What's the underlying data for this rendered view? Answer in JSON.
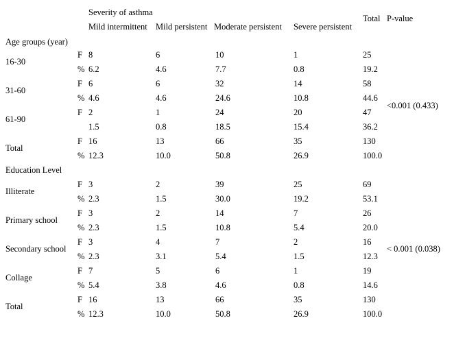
{
  "header": {
    "severity_title": "Severity of asthma",
    "col_mild_intermittent": "Mild intermittent",
    "col_mild_persistent": "Mild persistent",
    "col_moderate_persistent": "Moderate persistent",
    "col_severe_persistent": "Severe persistent",
    "col_total": "Total",
    "col_pvalue": "P-value"
  },
  "age_section": {
    "title": "Age groups (year)",
    "groups": [
      {
        "label": "16-30",
        "f": {
          "marker": "F",
          "values": [
            "8",
            "6",
            "10",
            "1",
            "25"
          ]
        },
        "p": {
          "marker": "%",
          "values": [
            "6.2",
            "4.6",
            "7.7",
            "0.8",
            "19.2"
          ]
        }
      },
      {
        "label": "31-60",
        "f": {
          "marker": "F",
          "values": [
            "6",
            "6",
            "32",
            "14",
            "58"
          ]
        },
        "p": {
          "marker": "%",
          "values": [
            "4.6",
            "4.6",
            "24.6",
            "10.8",
            "44.6"
          ]
        }
      },
      {
        "label": "61-90",
        "f": {
          "marker": "F",
          "values": [
            "2",
            "1",
            "24",
            "20",
            "47"
          ]
        },
        "p": {
          "marker": "",
          "values": [
            "1.5",
            "0.8",
            "18.5",
            "15.4",
            "36.2"
          ]
        }
      },
      {
        "label": "Total",
        "f": {
          "marker": "F",
          "values": [
            "16",
            "13",
            "66",
            "35",
            "130"
          ]
        },
        "p": {
          "marker": "%",
          "values": [
            "12.3",
            "10.0",
            "50.8",
            "26.9",
            "100.0"
          ]
        }
      }
    ],
    "pvalue": "<0.001 (0.433)"
  },
  "education_section": {
    "title": "Education Level",
    "groups": [
      {
        "label": "Illiterate",
        "f": {
          "marker": "F",
          "values": [
            "3",
            "2",
            "39",
            "25",
            "69"
          ]
        },
        "p": {
          "marker": "%",
          "values": [
            "2.3",
            "1.5",
            "30.0",
            "19.2",
            "53.1"
          ]
        }
      },
      {
        "label": "Primary school",
        "f": {
          "marker": "F",
          "values": [
            "3",
            "2",
            "14",
            "7",
            "26"
          ]
        },
        "p": {
          "marker": "%",
          "values": [
            "2.3",
            "1.5",
            "10.8",
            "5.4",
            "20.0"
          ]
        }
      },
      {
        "label": "Secondary school",
        "f": {
          "marker": "F",
          "values": [
            "3",
            "4",
            "7",
            "2",
            "16"
          ]
        },
        "p": {
          "marker": "%",
          "values": [
            "2.3",
            "3.1",
            "5.4",
            "1.5",
            "12.3"
          ]
        }
      },
      {
        "label": "Collage",
        "f": {
          "marker": "F",
          "values": [
            "7",
            "5",
            "6",
            "1",
            "19"
          ]
        },
        "p": {
          "marker": "%",
          "values": [
            "5.4",
            "3.8",
            "4.6",
            "0.8",
            "14.6"
          ]
        }
      },
      {
        "label": "Total",
        "f": {
          "marker": "F",
          "values": [
            "16",
            "13",
            "66",
            "35",
            "130"
          ]
        },
        "p": {
          "marker": "%",
          "values": [
            "12.3",
            "10.0",
            "50.8",
            "26.9",
            "100.0"
          ]
        }
      }
    ],
    "pvalue": "< 0.001 (0.038)"
  }
}
